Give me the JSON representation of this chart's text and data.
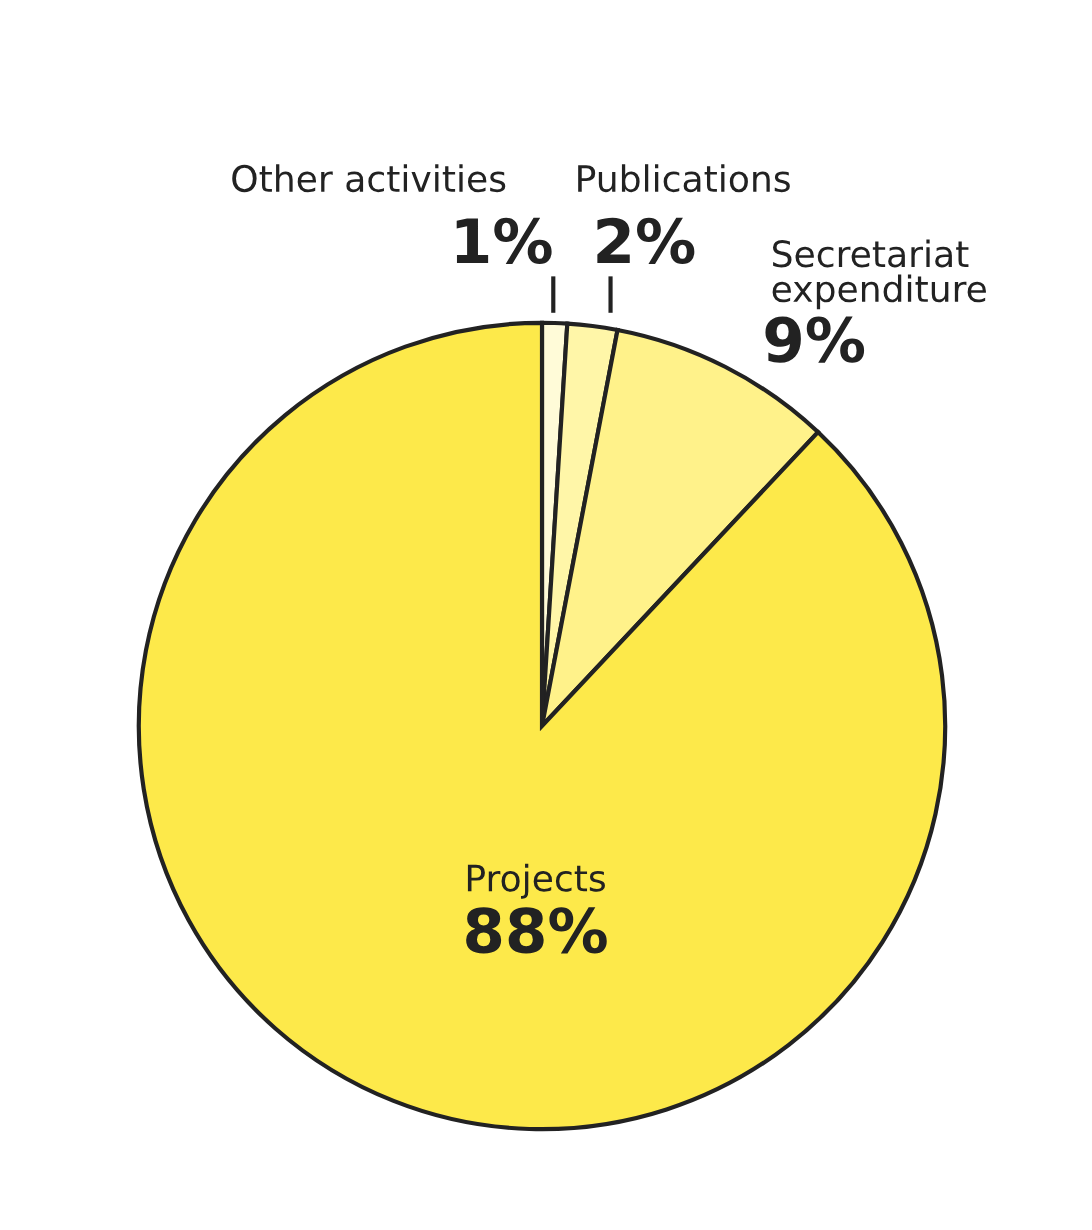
{
  "chart_data": {
    "type": "pie",
    "categories": [
      "Other activities",
      "Publications",
      "Secretariat expenditure",
      "Projects"
    ],
    "values": [
      1,
      2,
      9,
      88
    ],
    "value_labels": [
      "1%",
      "2%",
      "9%",
      "88%"
    ],
    "colors": [
      "#fffbd8",
      "#fff6a8",
      "#fff28a",
      "#fde94a"
    ]
  }
}
